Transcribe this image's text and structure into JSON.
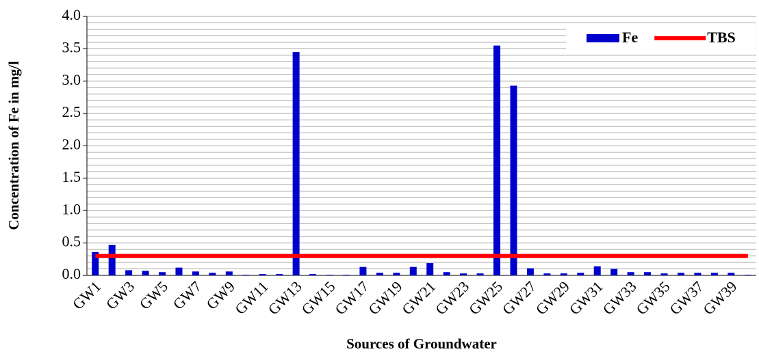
{
  "chart_data": {
    "type": "bar",
    "xlabel": "Sources of Groundwater",
    "ylabel": "Concentration of Fe in mg/l",
    "categories": [
      "GW1",
      null,
      "GW3",
      null,
      "GW5",
      null,
      "GW7",
      null,
      "GW9",
      null,
      "GW11",
      null,
      "GW13",
      null,
      "GW15",
      null,
      "GW17",
      null,
      "GW19",
      null,
      "GW21",
      null,
      "GW23",
      null,
      "GW25",
      null,
      "GW27",
      null,
      "GW29",
      null,
      "GW31",
      null,
      "GW33",
      null,
      "GW35",
      null,
      "GW37",
      null,
      "GW39",
      null
    ],
    "series": [
      {
        "name": "Fe",
        "type": "bar",
        "color": "#0000cc",
        "values": [
          0.36,
          0.47,
          0.08,
          0.07,
          0.05,
          0.12,
          0.06,
          0.04,
          0.06,
          0.01,
          0.02,
          0.02,
          3.45,
          0.02,
          0.01,
          0.01,
          0.13,
          0.04,
          0.04,
          0.13,
          0.19,
          0.05,
          0.03,
          0.03,
          3.55,
          2.93,
          0.11,
          0.03,
          0.03,
          0.04,
          0.14,
          0.1,
          0.05,
          0.05,
          0.03,
          0.04,
          0.04,
          0.04,
          0.04,
          0.01
        ]
      },
      {
        "name": "TBS",
        "type": "line",
        "color": "#ff0000",
        "values": [
          0.3,
          0.3,
          0.3,
          0.3,
          0.3,
          0.3,
          0.3,
          0.3,
          0.3,
          0.3,
          0.3,
          0.3,
          0.3,
          0.3,
          0.3,
          0.3,
          0.3,
          0.3,
          0.3,
          0.3,
          0.3,
          0.3,
          0.3,
          0.3,
          0.3,
          0.3,
          0.3,
          0.3,
          0.3,
          0.3,
          0.3,
          0.3,
          0.3,
          0.3,
          0.3,
          0.3,
          0.3,
          0.3,
          0.3,
          0.3
        ]
      }
    ],
    "ylim": [
      0,
      4
    ],
    "yticks": [
      {
        "value": 0,
        "label": "0.0"
      },
      0.5,
      {
        "value": 1,
        "label": "1.0"
      },
      1.5,
      {
        "value": 2,
        "label": "2.0"
      },
      2.5,
      {
        "value": 3,
        "label": "3.0"
      },
      3.5,
      {
        "value": 4,
        "label": "4.0"
      }
    ],
    "grid_lines": [
      0.1,
      0.2,
      0.3,
      0.4,
      0.5,
      0.6,
      0.7,
      0.8,
      0.9,
      1.0,
      1.1,
      1.2,
      1.3,
      1.4,
      1.5,
      1.6,
      1.7,
      1.8,
      1.9,
      2.0,
      2.1,
      2.2,
      2.3,
      2.4,
      2.5,
      2.6,
      2.7,
      2.8,
      2.9,
      3.0,
      3.1,
      3.2,
      3.3,
      3.4,
      3.5,
      3.6,
      3.7,
      3.8,
      3.9,
      4.0
    ],
    "grid": true,
    "legend": "top-right"
  }
}
